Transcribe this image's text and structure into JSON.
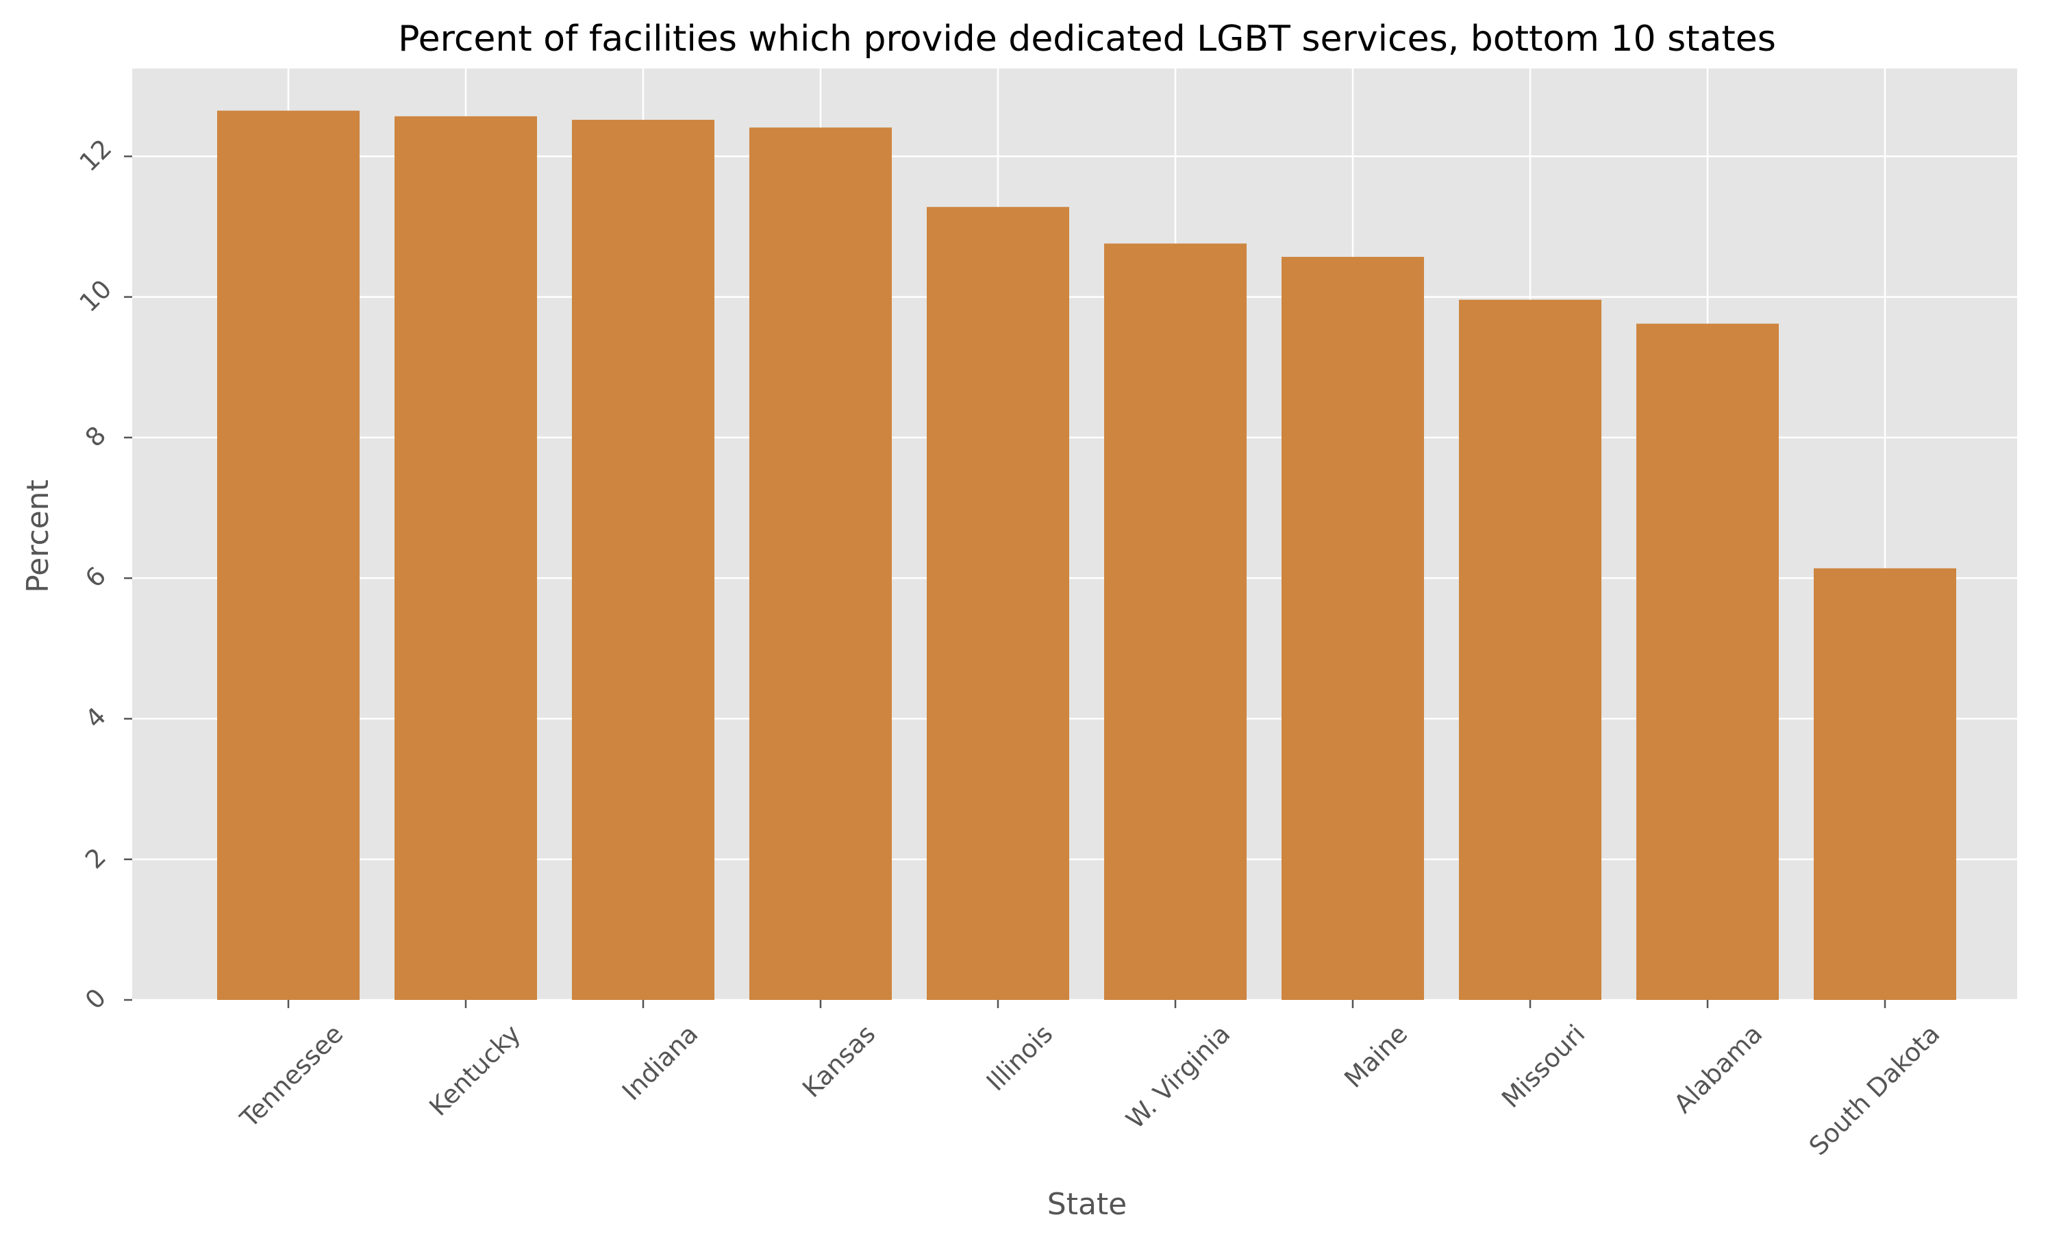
{
  "chart_data": {
    "type": "bar",
    "title": "Percent of facilities which provide dedicated LGBT services, bottom 10 states",
    "xlabel": "State",
    "ylabel": "Percent",
    "categories": [
      "Tennessee",
      "Kentucky",
      "Indiana",
      "Kansas",
      "Illinois",
      "W. Virginia",
      "Maine",
      "Missouri",
      "Alabama",
      "South Dakota"
    ],
    "values": [
      12.65,
      12.57,
      12.52,
      12.41,
      11.28,
      10.76,
      10.57,
      9.96,
      9.62,
      6.14
    ],
    "ylim": [
      0,
      13.25
    ],
    "yticks": [
      "0",
      "2",
      "4",
      "6",
      "8",
      "10",
      "12"
    ],
    "grid": true,
    "colors": {
      "bar": "#CD853F",
      "plot_background": "#E5E5E5",
      "grid": "#FFFFFF"
    }
  }
}
